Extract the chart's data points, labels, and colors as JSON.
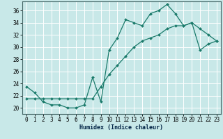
{
  "xlabel": "Humidex (Indice chaleur)",
  "xlim": [
    -0.5,
    23.5
  ],
  "ylim": [
    19.0,
    37.5
  ],
  "yticks": [
    20,
    22,
    24,
    26,
    28,
    30,
    32,
    34,
    36
  ],
  "xticks": [
    0,
    1,
    2,
    3,
    4,
    5,
    6,
    7,
    8,
    9,
    10,
    11,
    12,
    13,
    14,
    15,
    16,
    17,
    18,
    19,
    20,
    21,
    22,
    23
  ],
  "bg_color": "#c8e8e8",
  "grid_color": "#ffffff",
  "line_color": "#1a7a6a",
  "line1_x": [
    0,
    1,
    2,
    3,
    4,
    5,
    6,
    7,
    8,
    9,
    10,
    11,
    12,
    13,
    14,
    15,
    16,
    17,
    18,
    19,
    20,
    21,
    22,
    23
  ],
  "line1_y": [
    23.5,
    22.5,
    21.0,
    20.5,
    20.5,
    20.0,
    20.0,
    20.5,
    25.0,
    21.0,
    29.5,
    31.5,
    34.5,
    34.0,
    33.5,
    35.5,
    36.0,
    37.0,
    35.5,
    33.5,
    34.0,
    33.0,
    32.0,
    31.0
  ],
  "line2_x": [
    0,
    1,
    2,
    3,
    4,
    5,
    6,
    7,
    8,
    9,
    10,
    11,
    12,
    13,
    14,
    15,
    16,
    17,
    18,
    19,
    20,
    21,
    22,
    23
  ],
  "line2_y": [
    21.5,
    21.5,
    21.5,
    21.5,
    21.5,
    21.5,
    21.5,
    21.5,
    21.5,
    23.5,
    25.5,
    27.0,
    28.5,
    30.0,
    31.0,
    31.5,
    32.0,
    33.0,
    33.5,
    33.5,
    34.0,
    29.5,
    30.5,
    31.0
  ],
  "xlabel_fontsize": 6.0,
  "tick_fontsize": 5.5,
  "marker_size": 2.0,
  "linewidth": 0.9
}
